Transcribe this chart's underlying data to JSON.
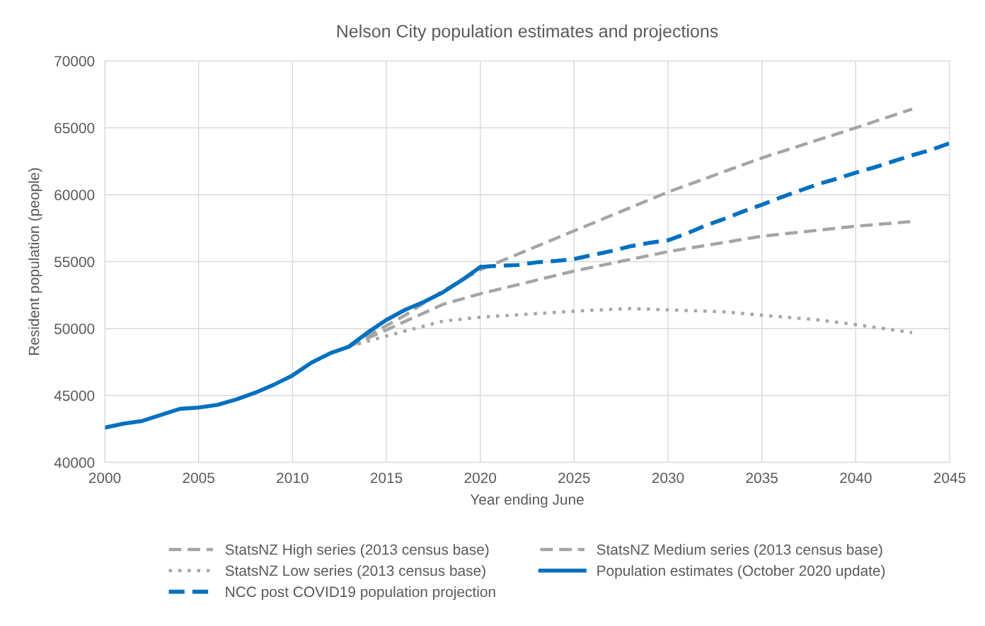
{
  "chart_data": {
    "type": "line",
    "title": "Nelson City population estimates and projections",
    "xlabel": "Year ending June",
    "ylabel": "Resident population (people)",
    "xlim": [
      2000,
      2045
    ],
    "xticks": [
      2000,
      2005,
      2010,
      2015,
      2020,
      2025,
      2030,
      2035,
      2040,
      2045
    ],
    "ylim": [
      40000,
      70000
    ],
    "yticks": [
      40000,
      45000,
      50000,
      55000,
      60000,
      65000,
      70000
    ],
    "grid": true,
    "legend": "bottom",
    "marker": "none",
    "series": [
      {
        "name": "StatsNZ High series (2013 census base)",
        "color": "#a5a5a5",
        "line_style": "dashed",
        "x": [
          2013,
          2016,
          2018,
          2020,
          2025,
          2030,
          2035,
          2040,
          2043
        ],
        "values": [
          48650,
          51000,
          52800,
          54400,
          57300,
          60200,
          62750,
          65000,
          66400
        ]
      },
      {
        "name": "StatsNZ Medium series (2013 census base)",
        "color": "#a5a5a5",
        "line_style": "dashed",
        "x": [
          2013,
          2015,
          2018,
          2020,
          2025,
          2030,
          2035,
          2040,
          2043
        ],
        "values": [
          48650,
          49900,
          51800,
          52600,
          54300,
          55750,
          56900,
          57650,
          58000
        ]
      },
      {
        "name": "StatsNZ Low series (2013 census base)",
        "color": "#a5a5a5",
        "line_style": "dotted",
        "x": [
          2013,
          2015,
          2018,
          2020,
          2025,
          2028,
          2030,
          2033,
          2035,
          2038,
          2040,
          2043
        ],
        "values": [
          48650,
          49450,
          50550,
          50850,
          51300,
          51500,
          51400,
          51250,
          51000,
          50650,
          50300,
          49700
        ]
      },
      {
        "name": "Population estimates (October 2020 update)",
        "color": "#0070c0",
        "line_style": "solid",
        "x": [
          2000,
          2001,
          2002,
          2003,
          2004,
          2005,
          2006,
          2007,
          2008,
          2009,
          2010,
          2011,
          2012,
          2013,
          2014,
          2015,
          2016,
          2017,
          2018,
          2019,
          2020
        ],
        "values": [
          42600,
          42900,
          43100,
          43550,
          44000,
          44100,
          44300,
          44700,
          45200,
          45800,
          46500,
          47450,
          48150,
          48650,
          49700,
          50650,
          51400,
          52000,
          52700,
          53600,
          54600
        ]
      },
      {
        "name": "NCC post COVID19 population projection",
        "color": "#0070c0",
        "line_style": "dashed",
        "x": [
          2020,
          2021,
          2022,
          2023,
          2024,
          2025,
          2026,
          2027,
          2028,
          2029,
          2030,
          2031,
          2032,
          2033,
          2034,
          2035,
          2036,
          2037,
          2038,
          2039,
          2040,
          2041,
          2042,
          2043,
          2044,
          2045
        ],
        "values": [
          54600,
          54700,
          54750,
          54950,
          55050,
          55200,
          55500,
          55800,
          56150,
          56400,
          56600,
          57100,
          57700,
          58200,
          58750,
          59250,
          59800,
          60300,
          60800,
          61200,
          61650,
          62050,
          62500,
          62950,
          63350,
          63850
        ]
      }
    ]
  }
}
